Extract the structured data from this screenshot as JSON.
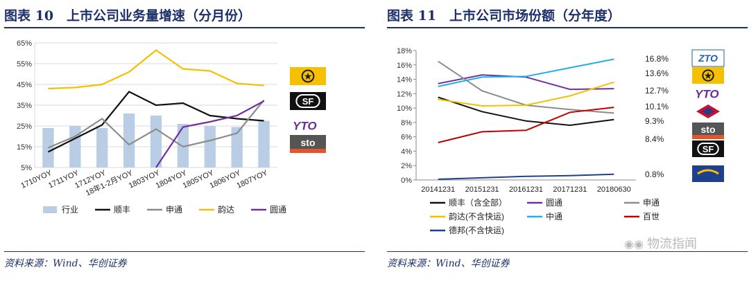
{
  "left": {
    "title": "图表 10　上市公司业务量增速（分月份）",
    "source": "资料来源：Wind、华创证券"
  },
  "right": {
    "title": "图表 11　上市公司市场份额（分年度）",
    "source": "资料来源：Wind、华创证券"
  },
  "watermark": "物流指闻",
  "chart_data": [
    {
      "type": "bar",
      "categories": [
        "1710YOY",
        "1711YOY",
        "1712YOY",
        "18年1-2月YOY",
        "1803YOY",
        "1804YOY",
        "1805YOY",
        "1806YOY",
        "1807YOY"
      ],
      "ylim": [
        5,
        65
      ],
      "yticks": [
        "5%",
        "15%",
        "25%",
        "35%",
        "45%",
        "55%",
        "65%"
      ],
      "grid": true,
      "legend_position": "bottom",
      "series": [
        {
          "name": "行业",
          "type": "bar",
          "color": "#b9cde5",
          "values": [
            24,
            25,
            24,
            31,
            30,
            26,
            25,
            24.5,
            27.5
          ]
        },
        {
          "name": "顺丰",
          "type": "line",
          "color": "#111111",
          "values": [
            12.5,
            19,
            25.5,
            41.5,
            35,
            36,
            30,
            28.5,
            27.5
          ]
        },
        {
          "name": "申通",
          "type": "line",
          "color": "#8c8c8c",
          "values": [
            14.5,
            20,
            28.5,
            16,
            23.5,
            15,
            18,
            21.5,
            37.5
          ]
        },
        {
          "name": "韵达",
          "type": "line",
          "color": "#f5c000",
          "values": [
            43,
            43.5,
            45,
            51,
            61.5,
            52.5,
            51.5,
            45.5,
            44.5
          ]
        },
        {
          "name": "圆通",
          "type": "line",
          "color": "#7030a0",
          "values": [
            null,
            null,
            null,
            null,
            5,
            24.5,
            27,
            30,
            37
          ]
        }
      ]
    },
    {
      "type": "line",
      "categories": [
        "20141231",
        "20151231",
        "20161231",
        "20171231",
        "20180630"
      ],
      "ylim": [
        0,
        18
      ],
      "yticks": [
        "0%",
        "2%",
        "4%",
        "6%",
        "8%",
        "10%",
        "12%",
        "14%",
        "16%",
        "18%"
      ],
      "grid": false,
      "legend_position": "bottom",
      "end_labels": [
        "16.8%",
        "13.6%",
        "12.7%",
        "10.1%",
        "9.3%",
        "8.4%",
        "0.8%"
      ],
      "series": [
        {
          "name": "顺丰（含全部）",
          "color": "#111111",
          "values": [
            11.5,
            9.5,
            8.2,
            7.6,
            8.4
          ]
        },
        {
          "name": "圆通",
          "color": "#7030a0",
          "values": [
            13.4,
            14.6,
            14.3,
            12.6,
            12.7
          ]
        },
        {
          "name": "申通",
          "color": "#8c8c8c",
          "values": [
            16.5,
            12.4,
            10.4,
            9.8,
            9.3
          ]
        },
        {
          "name": "韵达(不含快运)",
          "color": "#f5c000",
          "values": [
            11.2,
            10.3,
            10.4,
            11.7,
            13.6
          ]
        },
        {
          "name": "中通",
          "color": "#1fb1e6",
          "values": [
            13,
            14.3,
            14.4,
            15.6,
            16.8
          ]
        },
        {
          "name": "百世",
          "color": "#c00000",
          "values": [
            5.2,
            6.7,
            6.9,
            9.4,
            10.1
          ]
        },
        {
          "name": "德邦(不含快运)",
          "color": "#1f3f8f",
          "values": [
            0.1,
            0.3,
            0.5,
            0.6,
            0.8
          ]
        }
      ]
    }
  ],
  "logos": {
    "left": [
      {
        "name": "yunda-logo",
        "text": "",
        "color": "#f5c000"
      },
      {
        "name": "sf-logo",
        "text": "SF",
        "color": "#111111"
      },
      {
        "name": "yto-logo",
        "text": "YTO",
        "color": "#6a2c91"
      },
      {
        "name": "sto-logo",
        "text": "sto",
        "color": "#e4552b"
      }
    ],
    "right": [
      {
        "name": "zto-logo",
        "text": "ZTO",
        "color": "#1f5fb4"
      },
      {
        "name": "yunda-logo",
        "text": "",
        "color": "#f5c000"
      },
      {
        "name": "yto-logo",
        "text": "YTO",
        "color": "#6a2c91"
      },
      {
        "name": "best-logo",
        "text": "",
        "color": "#c8102e"
      },
      {
        "name": "sto-logo",
        "text": "sto",
        "color": "#e4552b"
      },
      {
        "name": "sf-logo",
        "text": "SF",
        "color": "#111111"
      },
      {
        "name": "deppon-logo",
        "text": "",
        "color": "#1f3f8f"
      }
    ]
  }
}
